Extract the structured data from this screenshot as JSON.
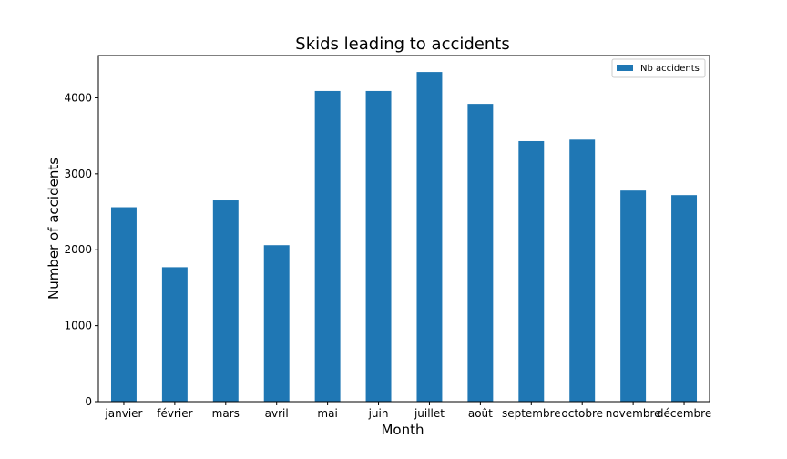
{
  "chart_data": {
    "type": "bar",
    "title": "Skids leading to accidents",
    "xlabel": "Month",
    "ylabel": "Number of accidents",
    "categories": [
      "janvier",
      "février",
      "mars",
      "avril",
      "mai",
      "juin",
      "juillet",
      "août",
      "septembre",
      "octobre",
      "novembre",
      "décembre"
    ],
    "series": [
      {
        "name": "Nb accidents",
        "values": [
          2560,
          1770,
          2650,
          2060,
          4090,
          4090,
          4340,
          3920,
          3430,
          3450,
          2780,
          2720
        ]
      }
    ],
    "ylim": [
      0,
      4557
    ],
    "yticks": [
      0,
      1000,
      2000,
      3000,
      4000
    ],
    "grid": false,
    "legend_position": "top-right",
    "bar_color": "#1f77b4"
  }
}
